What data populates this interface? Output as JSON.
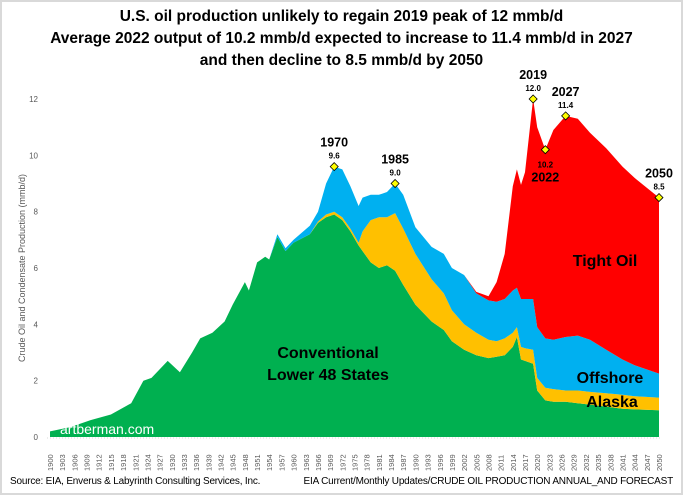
{
  "chart_data": {
    "type": "area",
    "stacked": true,
    "title": [
      "U.S. oil production unlikely to regain 2019 peak of 12 mmb/d",
      "Average 2022 output of 10.2 mmb/d expected to increase to 11.4 mmb/d in 2027",
      "and then decline to 8.5 mmb/d by 2050"
    ],
    "ylabel": "Crude  Oil and Condensate Production  (mmb/d)",
    "xlabel": "",
    "ylim": [
      0,
      12
    ],
    "yticks": [
      "0",
      "2",
      "4",
      "6",
      "8",
      "10",
      "12"
    ],
    "xlim": [
      1900,
      2050
    ],
    "xtick_step": 3,
    "grid": false,
    "years": [
      1900,
      1905,
      1910,
      1915,
      1920,
      1923,
      1925,
      1929,
      1932,
      1935,
      1937,
      1940,
      1943,
      1945,
      1948,
      1949,
      1951,
      1953,
      1954,
      1956,
      1958,
      1960,
      1964,
      1966,
      1968,
      1970,
      1972,
      1974,
      1976,
      1977,
      1979,
      1981,
      1983,
      1985,
      1987,
      1990,
      1994,
      1997,
      1999,
      2002,
      2005,
      2008,
      2010,
      2012,
      2014,
      2015,
      2016,
      2017,
      2019,
      2020,
      2022,
      2024,
      2027,
      2030,
      2033,
      2037,
      2041,
      2044,
      2050
    ],
    "series": [
      {
        "name": "Conventional Lower 48 States",
        "color": "#00b050",
        "values": [
          0.2,
          0.35,
          0.6,
          0.8,
          1.2,
          2.0,
          2.1,
          2.7,
          2.3,
          3.0,
          3.5,
          3.7,
          4.1,
          4.7,
          5.5,
          5.2,
          6.2,
          6.4,
          6.3,
          7.1,
          6.6,
          6.9,
          7.2,
          7.6,
          7.8,
          7.9,
          7.7,
          7.3,
          6.8,
          6.6,
          6.2,
          6.0,
          6.1,
          5.9,
          5.4,
          4.7,
          4.1,
          3.8,
          3.4,
          3.1,
          2.9,
          2.8,
          2.85,
          2.9,
          3.2,
          3.55,
          2.75,
          2.7,
          2.6,
          1.65,
          1.3,
          1.25,
          1.25,
          1.2,
          1.15,
          1.08,
          1.0,
          0.98,
          0.95
        ]
      },
      {
        "name": "Alaska",
        "color": "#ffc000",
        "values": [
          0,
          0,
          0,
          0,
          0,
          0,
          0,
          0,
          0,
          0,
          0,
          0,
          0,
          0,
          0,
          0,
          0,
          0,
          0,
          0,
          0,
          0,
          0,
          0.05,
          0.1,
          0.1,
          0.1,
          0.1,
          0.1,
          0.7,
          1.5,
          1.8,
          1.7,
          2.05,
          2.0,
          1.8,
          1.5,
          1.3,
          1.1,
          0.9,
          0.8,
          0.65,
          0.55,
          0.6,
          0.5,
          0.35,
          0.45,
          0.45,
          0.5,
          0.45,
          0.45,
          0.45,
          0.4,
          0.45,
          0.45,
          0.47,
          0.5,
          0.47,
          0.45
        ]
      },
      {
        "name": "Offshore",
        "color": "#00b0f0",
        "values": [
          0,
          0,
          0,
          0,
          0,
          0,
          0,
          0,
          0,
          0,
          0,
          0,
          0,
          0,
          0,
          0,
          0,
          0,
          0,
          0.1,
          0.1,
          0.1,
          0.3,
          0.35,
          1.1,
          1.6,
          1.7,
          1.5,
          1.3,
          1.2,
          0.9,
          0.8,
          0.9,
          1.05,
          1.2,
          0.95,
          1.15,
          1.4,
          1.5,
          1.75,
          1.4,
          1.4,
          1.4,
          1.4,
          1.5,
          1.4,
          1.7,
          1.75,
          1.8,
          1.8,
          1.75,
          1.75,
          1.9,
          1.95,
          1.85,
          1.55,
          1.25,
          1.1,
          0.85
        ]
      },
      {
        "name": "Tight Oil",
        "color": "#ff0000",
        "values": [
          0,
          0,
          0,
          0,
          0,
          0,
          0,
          0,
          0,
          0,
          0,
          0,
          0,
          0,
          0,
          0,
          0,
          0,
          0,
          0,
          0,
          0,
          0,
          0,
          0,
          0,
          0,
          0,
          0,
          0,
          0,
          0,
          0,
          0,
          0,
          0,
          0,
          0,
          0,
          0,
          0.05,
          0.15,
          0.7,
          1.6,
          3.7,
          4.2,
          4.05,
          4.5,
          7.1,
          7.1,
          6.7,
          7.45,
          7.85,
          7.7,
          7.35,
          7.15,
          6.85,
          6.65,
          6.25
        ]
      }
    ],
    "annotations": [
      {
        "year": "1970",
        "value": "9.6",
        "y": 9.6,
        "pos": "above"
      },
      {
        "year": "1985",
        "value": "9.0",
        "y": 9.0,
        "pos": "above"
      },
      {
        "year": "2019",
        "value": "12.0",
        "y": 12.0,
        "pos": "above"
      },
      {
        "year": "2022",
        "value": "10.2",
        "y": 10.2,
        "pos": "below"
      },
      {
        "year": "2027",
        "value": "11.4",
        "y": 11.4,
        "pos": "above"
      },
      {
        "year": "2050",
        "value": "8.5",
        "y": 8.5,
        "pos": "above"
      }
    ],
    "area_labels": {
      "conventional": [
        "Conventional",
        "Lower 48 States"
      ],
      "tight": "Tight Oil",
      "offshore": "Offshore",
      "alaska": "Alaska"
    },
    "marker_color": "#ffff00"
  },
  "watermark": "artberman.com",
  "source_left": "Source: EIA, Enverus & Labyrinth Consulting Services, Inc.",
  "source_right": "EIA Current/Monthly Updates/CRUDE OIL PRODUCTION ANNUAL_AND FORECAST"
}
